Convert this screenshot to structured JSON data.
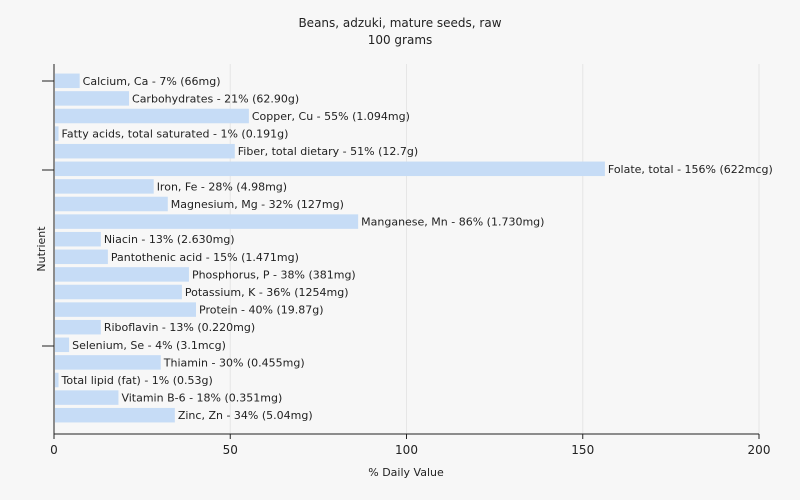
{
  "chart_data": {
    "type": "bar",
    "orientation": "horizontal",
    "title": "Beans, adzuki, mature seeds, raw",
    "subtitle": "100 grams",
    "xlabel": "% Daily Value",
    "ylabel": "Nutrient",
    "xlim": [
      0,
      200
    ],
    "xticks": [
      0,
      50,
      100,
      150,
      200
    ],
    "grid": true,
    "bar_color": "#c6dcf6",
    "categories": [
      "Calcium, Ca",
      "Carbohydrates",
      "Copper, Cu",
      "Fatty acids, total saturated",
      "Fiber, total dietary",
      "Folate, total",
      "Iron, Fe",
      "Magnesium, Mg",
      "Manganese, Mn",
      "Niacin",
      "Pantothenic acid",
      "Phosphorus, P",
      "Potassium, K",
      "Protein",
      "Riboflavin",
      "Selenium, Se",
      "Thiamin",
      "Total lipid (fat)",
      "Vitamin B-6",
      "Zinc, Zn"
    ],
    "values": [
      7,
      21,
      55,
      1,
      51,
      156,
      28,
      32,
      86,
      13,
      15,
      38,
      36,
      40,
      13,
      4,
      30,
      1,
      18,
      34
    ],
    "labels": [
      "Calcium, Ca - 7% (66mg)",
      "Carbohydrates - 21% (62.90g)",
      "Copper, Cu - 55% (1.094mg)",
      "Fatty acids, total saturated - 1% (0.191g)",
      "Fiber, total dietary - 51% (12.7g)",
      "Folate, total - 156% (622mcg)",
      "Iron, Fe - 28% (4.98mg)",
      "Magnesium, Mg - 32% (127mg)",
      "Manganese, Mn - 86% (1.730mg)",
      "Niacin - 13% (2.630mg)",
      "Pantothenic acid - 15% (1.471mg)",
      "Phosphorus, P - 38% (381mg)",
      "Potassium, K - 36% (1254mg)",
      "Protein - 40% (19.87g)",
      "Riboflavin - 13% (0.220mg)",
      "Selenium, Se - 4% (3.1mcg)",
      "Thiamin - 30% (0.455mg)",
      "Total lipid (fat) - 1% (0.53g)",
      "Vitamin B-6 - 18% (0.351mg)",
      "Zinc, Zn - 34% (5.04mg)"
    ]
  }
}
